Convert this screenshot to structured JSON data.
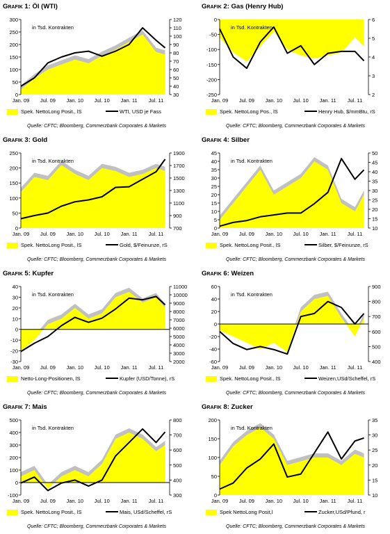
{
  "charts": [
    {
      "grafik_label": "Grafik 1:",
      "title": "Öl (WTI)",
      "note": "in Tsd. Kontrakten",
      "legend_left": "Spek. NettoLong Posit., lS",
      "legend_right": "WTI, USD je Fass",
      "source": "Quelle: CFTC; Bloomberg, Commerzbank Corporates & Markets",
      "chart_data": {
        "type": "area",
        "x": [
          "2009-01",
          "2009-04",
          "2009-07",
          "2009-10",
          "2010-01",
          "2010-04",
          "2010-07",
          "2010-10",
          "2011-01",
          "2011-04",
          "2011-07",
          "2011-09"
        ],
        "xticks": [
          "Jan. 09",
          "Jul. 09",
          "Jan. 10",
          "Jul. 10",
          "Jan. 11",
          "Jul. 11"
        ],
        "left_axis": {
          "range": [
            0,
            300
          ],
          "ticks": [
            0,
            50,
            100,
            150,
            200,
            250,
            300
          ]
        },
        "right_axis": {
          "range": [
            30,
            120
          ],
          "ticks": [
            30,
            40,
            50,
            60,
            70,
            80,
            90,
            100,
            110,
            120
          ]
        },
        "series": [
          {
            "name": "Spek. NettoLong Posit., lS",
            "axis": "left",
            "values": [
              20,
              65,
              100,
              120,
              140,
              125,
              155,
              180,
              210,
              240,
              170,
              160
            ]
          },
          {
            "name": "WTI, USD je Fass",
            "axis": "right",
            "values": [
              40,
              50,
              68,
              75,
              80,
              82,
              76,
              82,
              90,
              110,
              95,
              86
            ]
          }
        ]
      }
    },
    {
      "grafik_label": "Grafik 2:",
      "title": "Gas (Henry Hub)",
      "note": "in Tsd. Kontrakten",
      "legend_left": "Spek. NettoLong Pos., lS",
      "legend_right": "Henry Hub, $/mmBtu, rS",
      "source": "Quelle: CFTC; Bloomberg, Commerzbank Corporates & Markets",
      "chart_data": {
        "type": "area",
        "x": [
          "2009-01",
          "2009-04",
          "2009-07",
          "2009-10",
          "2010-01",
          "2010-04",
          "2010-07",
          "2010-10",
          "2011-01",
          "2011-04",
          "2011-07",
          "2011-09"
        ],
        "xticks": [
          "Jan. 09",
          "Jul. 09",
          "Jan. 10",
          "Jul. 10",
          "Jan. 11",
          "Jul. 11"
        ],
        "left_axis": {
          "range": [
            -250,
            0
          ],
          "ticks": [
            -250,
            -200,
            -150,
            -100,
            -50,
            0
          ]
        },
        "right_axis": {
          "range": [
            2,
            6
          ],
          "ticks": [
            2,
            3,
            4,
            5,
            6
          ]
        },
        "series": [
          {
            "name": "Spek. NettoLong Pos., lS",
            "axis": "left",
            "values": [
              -60,
              -110,
              -140,
              -90,
              -40,
              -100,
              -120,
              -130,
              -120,
              -110,
              -60,
              -90
            ]
          },
          {
            "name": "Henry Hub, $/mmBtu, rS",
            "axis": "right",
            "values": [
              5.5,
              4.0,
              3.4,
              4.8,
              5.6,
              4.2,
              4.6,
              3.6,
              4.2,
              4.3,
              4.3,
              3.8
            ]
          }
        ]
      }
    },
    {
      "grafik_label": "Grafik 3:",
      "title": "Gold",
      "note": "in Tsd. Kontrakten",
      "legend_left": "Spek. NettoLong Posit., lS",
      "legend_right": "Gold, $/Feinunze, rS",
      "source": "Quelle: CFTC; Bloomberg, Commerzbank Corporates & Markets",
      "chart_data": {
        "type": "area",
        "x": [
          "2009-01",
          "2009-04",
          "2009-07",
          "2009-10",
          "2010-01",
          "2010-04",
          "2010-07",
          "2010-10",
          "2011-01",
          "2011-04",
          "2011-07",
          "2011-09"
        ],
        "xticks": [
          "Jan. 09",
          "Jul. 09",
          "Jan. 10",
          "Jul. 10",
          "Jan. 11",
          "Jul. 11"
        ],
        "left_axis": {
          "range": [
            0,
            250
          ],
          "ticks": [
            0,
            50,
            100,
            150,
            200,
            250
          ]
        },
        "right_axis": {
          "range": [
            700,
            1900
          ],
          "ticks": [
            700,
            900,
            1100,
            1300,
            1500,
            1700,
            1900
          ]
        },
        "series": [
          {
            "name": "Spek. NettoLong Posit., lS",
            "axis": "left",
            "values": [
              120,
              170,
              160,
              210,
              180,
              160,
              200,
              190,
              170,
              180,
              200,
              190
            ]
          },
          {
            "name": "Gold, $/Feinunze, rS",
            "axis": "right",
            "values": [
              850,
              900,
              940,
              1050,
              1120,
              1150,
              1200,
              1350,
              1360,
              1480,
              1600,
              1800
            ]
          }
        ]
      }
    },
    {
      "grafik_label": "Grafik 4:",
      "title": "Silber",
      "note": "in Tsd. Kontrakten",
      "legend_left": "Spek. NettoLong Posit., lS",
      "legend_right": "Silber, $/Feinunze, rS",
      "source": "Quelle: CFTC; Bloomberg, Commerzbank Corporates & Markets",
      "chart_data": {
        "type": "area",
        "x": [
          "2009-01",
          "2009-04",
          "2009-07",
          "2009-10",
          "2010-01",
          "2010-04",
          "2010-07",
          "2010-10",
          "2011-01",
          "2011-04",
          "2011-07",
          "2011-09"
        ],
        "xticks": [
          "Jan. 09",
          "Jul. 09",
          "Jan. 10",
          "Jul. 10",
          "Jan. 11",
          "Jul. 11"
        ],
        "left_axis": {
          "range": [
            0,
            45
          ],
          "ticks": [
            0,
            5,
            10,
            15,
            20,
            25,
            30,
            35,
            40,
            45
          ]
        },
        "right_axis": {
          "range": [
            10,
            50
          ],
          "ticks": [
            10,
            15,
            20,
            25,
            30,
            35,
            40,
            45,
            50
          ]
        },
        "series": [
          {
            "name": "Spek. NettoLong Posit., lS",
            "axis": "left",
            "values": [
              5,
              15,
              25,
              35,
              20,
              25,
              30,
              40,
              35,
              15,
              10,
              20
            ]
          },
          {
            "name": "Silber, $/Feinunze, rS",
            "axis": "right",
            "values": [
              11,
              13,
              14,
              16,
              17,
              18,
              18,
              23,
              29,
              47,
              36,
              41
            ]
          }
        ]
      }
    },
    {
      "grafik_label": "Grafik 5:",
      "title": "Kupfer",
      "note": "in Tsd. Kontrakten",
      "legend_left": "Netto-Long-Positionen, lS",
      "legend_right": "Kupfer (USD/Tonne), rS",
      "source": "Quelle: CFTC; Bloomberg, Commerzbank Corporates & Markets",
      "chart_data": {
        "type": "area",
        "x": [
          "2009-01",
          "2009-04",
          "2009-07",
          "2009-10",
          "2010-01",
          "2010-04",
          "2010-07",
          "2010-10",
          "2011-01",
          "2011-04",
          "2011-07",
          "2011-09"
        ],
        "xticks": [
          "Jan. 09",
          "Jul. 09",
          "Jan. 10",
          "Jul. 10",
          "Jan. 11",
          "Jul. 11"
        ],
        "left_axis": {
          "range": [
            -30,
            40
          ],
          "ticks": [
            -30,
            -20,
            -10,
            0,
            10,
            20,
            30,
            40
          ]
        },
        "right_axis": {
          "range": [
            2000,
            11000
          ],
          "ticks": [
            2000,
            3000,
            4000,
            5000,
            6000,
            7000,
            8000,
            9000,
            10000,
            11000
          ]
        },
        "series": [
          {
            "name": "Netto-Long-Positionen, lS",
            "axis": "left",
            "values": [
              -20,
              -10,
              5,
              10,
              20,
              10,
              15,
              30,
              35,
              25,
              30,
              20
            ]
          },
          {
            "name": "Kupfer (USD/Tonne), rS",
            "axis": "right",
            "values": [
              3200,
              4200,
              5000,
              6300,
              7300,
              6700,
              7200,
              8300,
              9600,
              9400,
              9800,
              8800
            ]
          }
        ]
      }
    },
    {
      "grafik_label": "Grafik 6:",
      "title": "Weizen",
      "note": "in Tsd. Kontrakten",
      "legend_left": "Spek. NettoLong Posit., lS",
      "legend_right": "Weizen,USd/Scheffel, rS",
      "source": "Quelle: CFTC; Bloomberg, Commerzbank Corporates & Markets",
      "chart_data": {
        "type": "area",
        "x": [
          "2009-01",
          "2009-04",
          "2009-07",
          "2009-10",
          "2010-01",
          "2010-04",
          "2010-07",
          "2010-10",
          "2011-01",
          "2011-04",
          "2011-07",
          "2011-09"
        ],
        "xticks": [
          "Jan. 09",
          "Jul. 09",
          "Jan. 10",
          "Jul. 10",
          "Jan. 11",
          "Jul. 11"
        ],
        "left_axis": {
          "range": [
            -60,
            60
          ],
          "ticks": [
            -60,
            -40,
            -20,
            0,
            20,
            40,
            60
          ]
        },
        "right_axis": {
          "range": [
            400,
            900
          ],
          "ticks": [
            400,
            500,
            600,
            700,
            800,
            900
          ]
        },
        "series": [
          {
            "name": "Spek. NettoLong Posit., lS",
            "axis": "left",
            "values": [
              -10,
              -20,
              -30,
              -40,
              -30,
              -45,
              20,
              40,
              45,
              10,
              -20,
              10
            ]
          },
          {
            "name": "Weizen,USd/Scheffel, rS",
            "axis": "right",
            "values": [
              600,
              520,
              480,
              500,
              480,
              450,
              700,
              720,
              800,
              760,
              650,
              720
            ]
          }
        ]
      }
    },
    {
      "grafik_label": "Grafik 7:",
      "title": "Mais",
      "note": "in Tsd. Kontrakten",
      "legend_left": "Spek. NettoLong Posit., lS",
      "legend_right": "Mais, USd/Scheffel, rS",
      "source": "Quelle: CFTC; Bloomberg, Commerzbank Corporates & Markets",
      "chart_data": {
        "type": "area",
        "x": [
          "2009-01",
          "2009-04",
          "2009-07",
          "2009-10",
          "2010-01",
          "2010-04",
          "2010-07",
          "2010-10",
          "2011-01",
          "2011-04",
          "2011-07",
          "2011-09"
        ],
        "xticks": [
          "Jan. 09",
          "Jul. 09",
          "Jan. 10",
          "Jul. 10",
          "Jan. 11",
          "Jul. 11"
        ],
        "left_axis": {
          "range": [
            -100,
            500
          ],
          "ticks": [
            -100,
            0,
            100,
            200,
            300,
            400,
            500
          ]
        },
        "right_axis": {
          "range": [
            300,
            800
          ],
          "ticks": [
            300,
            400,
            500,
            600,
            700,
            800
          ]
        },
        "series": [
          {
            "name": "Spek. NettoLong Posit., lS",
            "axis": "left",
            "values": [
              50,
              100,
              -50,
              50,
              100,
              50,
              150,
              350,
              400,
              350,
              250,
              300
            ]
          },
          {
            "name": "Mais, USd/Scheffel, rS",
            "axis": "right",
            "values": [
              380,
              420,
              330,
              380,
              400,
              360,
              400,
              560,
              650,
              740,
              650,
              720
            ]
          }
        ]
      }
    },
    {
      "grafik_label": "Grafik 8:",
      "title": "Zucker",
      "note": "in Tsd. Kontrakten",
      "legend_left": "Spek NettoLong Posit,l",
      "legend_right": "Zucker,USd/Pfund, r",
      "source": "Quelle: CFTC; Bloomberg, Commerzbank Corporates & Markets",
      "chart_data": {
        "type": "area",
        "x": [
          "2009-01",
          "2009-04",
          "2009-07",
          "2009-10",
          "2010-01",
          "2010-04",
          "2010-07",
          "2010-10",
          "2011-01",
          "2011-04",
          "2011-07",
          "2011-09"
        ],
        "xticks": [
          "Jan. 09",
          "Jul. 09",
          "Jan. 10",
          "Jul. 10",
          "Jan. 11",
          "Jul. 11"
        ],
        "left_axis": {
          "range": [
            0,
            200
          ],
          "ticks": [
            0,
            50,
            100,
            150,
            200
          ]
        },
        "right_axis": {
          "range": [
            10,
            35
          ],
          "ticks": [
            10,
            15,
            20,
            25,
            30,
            35
          ]
        },
        "series": [
          {
            "name": "Spek NettoLong Posit,l",
            "axis": "left",
            "values": [
              80,
              130,
              160,
              180,
              150,
              80,
              90,
              100,
              100,
              80,
              110,
              100
            ]
          },
          {
            "name": "Zucker,USd/Pfund, r",
            "axis": "right",
            "values": [
              12,
              14,
              19,
              22,
              27,
              16,
              17,
              24,
              31,
              22,
              28,
              29
            ]
          }
        ]
      }
    }
  ],
  "colors": {
    "area": "#ffff00",
    "area_shadow": "#c0c0c0",
    "line": "#000000"
  }
}
